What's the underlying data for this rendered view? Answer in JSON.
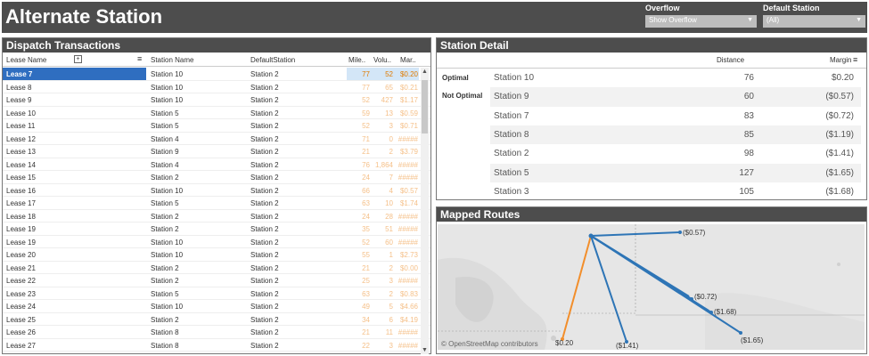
{
  "header": {
    "title": "Alternate Station",
    "overflow_label": "Overflow",
    "overflow_value": "Show Overflow",
    "default_station_label": "Default Station",
    "default_station_value": "(All)"
  },
  "dispatch": {
    "title": "Dispatch Transactions",
    "columns": {
      "lease": "Lease Name",
      "station": "Station Name",
      "default": "DefaultStation",
      "miles": "Mile..",
      "volume": "Volu..",
      "margin": "Mar.."
    },
    "rows": [
      {
        "lease": "Lease 7",
        "station": "Station 10",
        "default": "Station 2",
        "miles": "77",
        "volume": "52",
        "margin": "$0.20",
        "selected": true
      },
      {
        "lease": "Lease 8",
        "station": "Station 10",
        "default": "Station 2",
        "miles": "77",
        "volume": "65",
        "margin": "$0.21"
      },
      {
        "lease": "Lease 9",
        "station": "Station 10",
        "default": "Station 2",
        "miles": "52",
        "volume": "427",
        "margin": "$1.17"
      },
      {
        "lease": "Lease 10",
        "station": "Station 5",
        "default": "Station 2",
        "miles": "59",
        "volume": "13",
        "margin": "$0.59"
      },
      {
        "lease": "Lease 11",
        "station": "Station 5",
        "default": "Station 2",
        "miles": "52",
        "volume": "3",
        "margin": "$0.71"
      },
      {
        "lease": "Lease 12",
        "station": "Station 4",
        "default": "Station 2",
        "miles": "71",
        "volume": "0",
        "margin": "#####"
      },
      {
        "lease": "Lease 13",
        "station": "Station 9",
        "default": "Station 2",
        "miles": "21",
        "volume": "2",
        "margin": "$3.79"
      },
      {
        "lease": "Lease 14",
        "station": "Station 4",
        "default": "Station 2",
        "miles": "76",
        "volume": "1,864",
        "margin": "#####"
      },
      {
        "lease": "Lease 15",
        "station": "Station 2",
        "default": "Station 2",
        "miles": "24",
        "volume": "7",
        "margin": "#####"
      },
      {
        "lease": "Lease 16",
        "station": "Station 10",
        "default": "Station 2",
        "miles": "66",
        "volume": "4",
        "margin": "$0.57"
      },
      {
        "lease": "Lease 17",
        "station": "Station 5",
        "default": "Station 2",
        "miles": "63",
        "volume": "10",
        "margin": "$1.74"
      },
      {
        "lease": "Lease 18",
        "station": "Station 2",
        "default": "Station 2",
        "miles": "24",
        "volume": "28",
        "margin": "#####"
      },
      {
        "lease": "Lease 19",
        "station": "Station 2",
        "default": "Station 2",
        "miles": "35",
        "volume": "51",
        "margin": "#####"
      },
      {
        "lease": "Lease 19",
        "station": "Station 10",
        "default": "Station 2",
        "miles": "52",
        "volume": "60",
        "margin": "#####"
      },
      {
        "lease": "Lease 20",
        "station": "Station 10",
        "default": "Station 2",
        "miles": "55",
        "volume": "1",
        "margin": "$2.73"
      },
      {
        "lease": "Lease 21",
        "station": "Station 2",
        "default": "Station 2",
        "miles": "21",
        "volume": "2",
        "margin": "$0.00"
      },
      {
        "lease": "Lease 22",
        "station": "Station 2",
        "default": "Station 2",
        "miles": "25",
        "volume": "3",
        "margin": "#####"
      },
      {
        "lease": "Lease 23",
        "station": "Station 5",
        "default": "Station 2",
        "miles": "63",
        "volume": "2",
        "margin": "$0.83"
      },
      {
        "lease": "Lease 24",
        "station": "Station 10",
        "default": "Station 2",
        "miles": "49",
        "volume": "5",
        "margin": "$4.66"
      },
      {
        "lease": "Lease 25",
        "station": "Station 2",
        "default": "Station 2",
        "miles": "34",
        "volume": "6",
        "margin": "$4.19"
      },
      {
        "lease": "Lease 26",
        "station": "Station 8",
        "default": "Station 2",
        "miles": "21",
        "volume": "11",
        "margin": "#####"
      },
      {
        "lease": "Lease 27",
        "station": "Station 8",
        "default": "Station 2",
        "miles": "22",
        "volume": "3",
        "margin": "#####"
      }
    ]
  },
  "station_detail": {
    "title": "Station Detail",
    "col_distance": "Distance",
    "col_margin": "Margin",
    "group_optimal": "Optimal",
    "group_not_optimal": "Not Optimal",
    "rows": [
      {
        "station": "Station 10",
        "distance": "76",
        "margin": "$0.20"
      },
      {
        "station": "Station 9",
        "distance": "60",
        "margin": "($0.57)"
      },
      {
        "station": "Station 7",
        "distance": "83",
        "margin": "($0.72)"
      },
      {
        "station": "Station 8",
        "distance": "85",
        "margin": "($1.19)"
      },
      {
        "station": "Station 2",
        "distance": "98",
        "margin": "($1.41)"
      },
      {
        "station": "Station 5",
        "distance": "127",
        "margin": "($1.65)"
      },
      {
        "station": "Station 3",
        "distance": "105",
        "margin": "($1.68)"
      }
    ]
  },
  "map": {
    "title": "Mapped Routes",
    "credit": "© OpenStreetMap contributors",
    "route_labels": [
      "($0.57)",
      "($0.72)",
      "($1.68)",
      "($1.65)",
      "$0.20",
      "($1.41)"
    ],
    "colors": {
      "optimal": "#f28e2b",
      "alternate": "#2e75b6"
    }
  },
  "icons": [
    "add-column-icon",
    "sort-icon",
    "dropdown-caret-icon",
    "scroll-up-icon",
    "scroll-down-icon"
  ]
}
